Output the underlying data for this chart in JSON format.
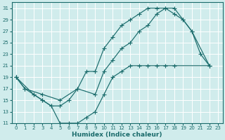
{
  "xlabel": "Humidex (Indice chaleur)",
  "ylabel": "",
  "bg_color": "#d0ecec",
  "grid_color": "#ffffff",
  "line_color": "#1a6b6b",
  "xlim": [
    -0.5,
    23.5
  ],
  "ylim": [
    11,
    32
  ],
  "xticks": [
    0,
    1,
    2,
    3,
    4,
    5,
    6,
    7,
    8,
    9,
    10,
    11,
    12,
    13,
    14,
    15,
    16,
    17,
    18,
    19,
    20,
    21,
    22,
    23
  ],
  "yticks": [
    11,
    13,
    15,
    17,
    19,
    21,
    23,
    25,
    27,
    29,
    31
  ],
  "line1": {
    "x": [
      0,
      1,
      2,
      3,
      4,
      5,
      6,
      7,
      8,
      9,
      10,
      11,
      12,
      13,
      14,
      15,
      16,
      17,
      18,
      19,
      20,
      22
    ],
    "y": [
      19,
      17,
      16,
      15,
      14,
      14,
      15,
      17,
      20,
      20,
      24,
      26,
      28,
      29,
      30,
      31,
      31,
      31,
      30,
      29,
      27,
      21
    ]
  },
  "line2": {
    "x": [
      0,
      1,
      3,
      5,
      7,
      9,
      10,
      11,
      12,
      13,
      14,
      15,
      16,
      17,
      18,
      19,
      20,
      21,
      22
    ],
    "y": [
      19,
      17,
      16,
      15,
      17,
      16,
      20,
      22,
      24,
      25,
      27,
      28,
      30,
      31,
      31,
      29,
      27,
      23,
      21
    ]
  },
  "line3": {
    "x": [
      0,
      2,
      3,
      4,
      5,
      6,
      7,
      8,
      9,
      10,
      11,
      12,
      13,
      14,
      15,
      16,
      17,
      18,
      22
    ],
    "y": [
      19,
      16,
      15,
      14,
      11,
      11,
      11,
      12,
      13,
      16,
      19,
      20,
      21,
      21,
      21,
      21,
      21,
      21,
      21
    ]
  }
}
